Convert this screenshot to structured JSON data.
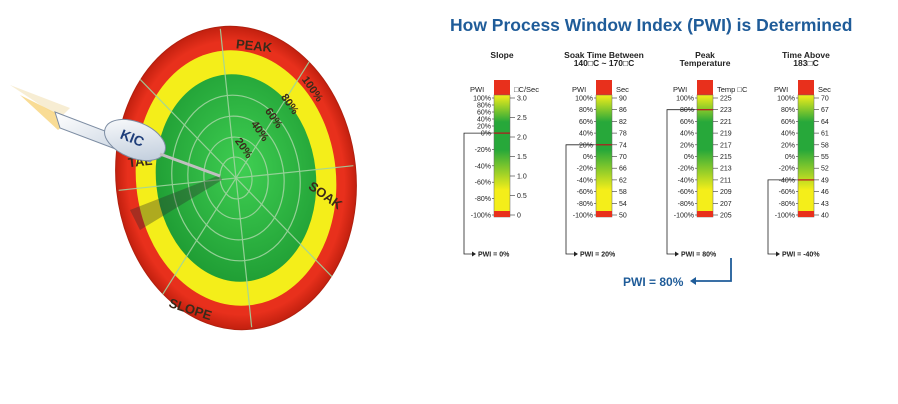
{
  "target": {
    "ring_labels": {
      "peak": "PEAK",
      "soak": "SOAK",
      "slope": "SLOPE",
      "tal": "TAL"
    },
    "pct_labels": [
      "100%",
      "80%",
      "60%",
      "40%",
      "20%"
    ],
    "dart_text": "KIC",
    "colors": {
      "outer": "#e8301c",
      "yellow": "#f4ee1a",
      "green": "#27a83a"
    }
  },
  "pwi": {
    "title": "How Process Window Index (PWI) is Determined",
    "pwi_label": "PWI",
    "result": "PWI = 80%",
    "columns": [
      {
        "header": [
          "Slope",
          ""
        ],
        "right_label": "□C/Sec",
        "left_ticks": [
          "100%",
          "80%",
          "60%",
          "40%",
          "20%",
          "0%",
          "-20%",
          "-40%",
          "-60%",
          "-80%",
          "-100%"
        ],
        "left_compact": true,
        "right_ticks": [
          "3.0",
          "2.5",
          "2.0",
          "1.5",
          "1.0",
          "0.5",
          "0"
        ],
        "marker": 0.3,
        "pwi": "PWI = 0%"
      },
      {
        "header": [
          "Soak Time Between",
          "140□C ~ 170□C"
        ],
        "right_label": "Sec",
        "left_ticks": [
          "100%",
          "80%",
          "60%",
          "40%",
          "20%",
          "0%",
          "-20%",
          "-40%",
          "-60%",
          "-80%",
          "-100%"
        ],
        "right_ticks": [
          "90",
          "86",
          "82",
          "78",
          "74",
          "70",
          "66",
          "62",
          "58",
          "54",
          "50"
        ],
        "marker": 0.4,
        "pwi": "PWI = 20%"
      },
      {
        "header": [
          "Peak",
          "Temperature"
        ],
        "right_label": "Temp □C",
        "left_ticks": [
          "100%",
          "80%",
          "60%",
          "40%",
          "20%",
          "0%",
          "-20%",
          "-40%",
          "-60%",
          "-80%",
          "-100%"
        ],
        "right_ticks": [
          "225",
          "223",
          "221",
          "219",
          "217",
          "215",
          "213",
          "211",
          "209",
          "207",
          "205"
        ],
        "marker": 0.1,
        "pwi": "PWI = 80%"
      },
      {
        "header": [
          "Time Above",
          "183□C"
        ],
        "right_label": "Sec",
        "left_ticks": [
          "100%",
          "80%",
          "60%",
          "40%",
          "20%",
          "0%",
          "-20%",
          "-40%",
          "-60%",
          "-80%",
          "-100%"
        ],
        "right_ticks": [
          "70",
          "67",
          "64",
          "61",
          "58",
          "55",
          "52",
          "49",
          "46",
          "43",
          "40"
        ],
        "marker": 0.7,
        "pwi": "PWI = -40%"
      }
    ],
    "colors": {
      "title": "#1f5c99",
      "red": "#e8301c",
      "yellow": "#f4ee1a",
      "green": "#27a83a",
      "marker": "#b8141e"
    }
  }
}
